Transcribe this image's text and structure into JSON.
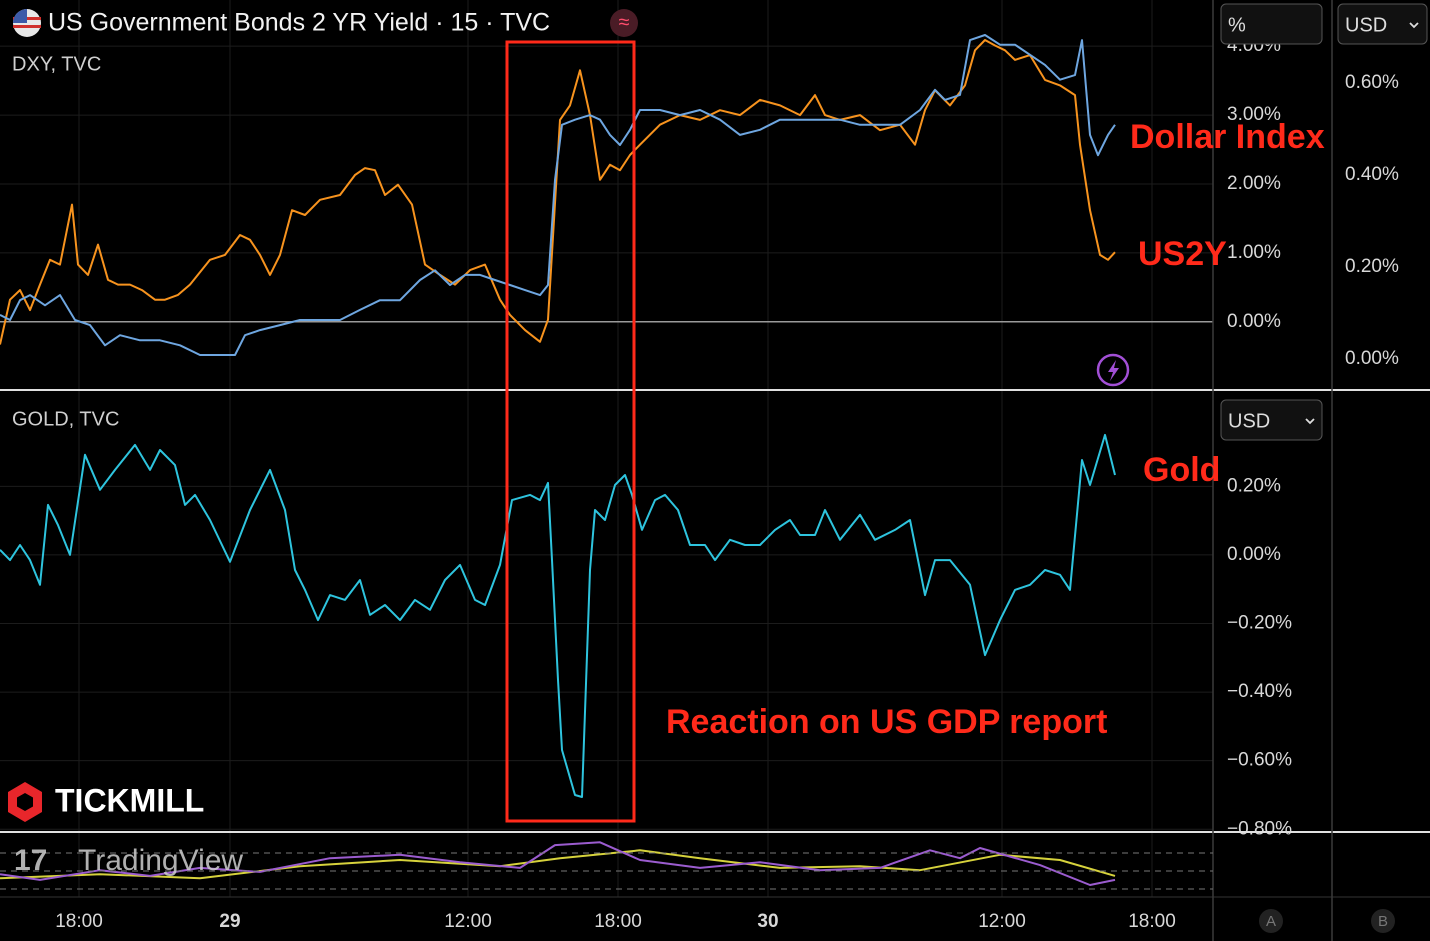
{
  "chart_data": [
    {
      "type": "line",
      "title": "US Government Bonds 2 YR Yield · 15 · TVC",
      "subtitle": "DXY, TVC",
      "xlim": [
        0,
        121.3
      ],
      "xticks": [
        {
          "value": 7.9,
          "label": "18:00"
        },
        {
          "value": 23,
          "label": "29"
        },
        {
          "value": 46.8,
          "label": "12:00"
        },
        {
          "value": 61.8,
          "label": "18:00"
        },
        {
          "value": 76.8,
          "label": "30"
        },
        {
          "value": 100.2,
          "label": "12:00"
        },
        {
          "value": 115.2,
          "label": "18:00"
        }
      ],
      "ylim": [
        -0.99,
        4.67
      ],
      "yticks": [
        {
          "value": 0,
          "label": "0.00%"
        },
        {
          "value": 1,
          "label": "1.00%"
        },
        {
          "value": 2,
          "label": "2.00%"
        },
        {
          "value": 3,
          "label": "3.00%"
        },
        {
          "value": 4,
          "label": "4.00%"
        }
      ],
      "y2lim": [
        -0.067,
        0.78
      ],
      "y2ticks": [
        {
          "value": 0,
          "label": "0.00%"
        },
        {
          "value": 0.2,
          "label": "0.20%"
        },
        {
          "value": 0.4,
          "label": "0.40%"
        },
        {
          "value": 0.6,
          "label": "0.60%"
        }
      ],
      "grid": true,
      "series": [
        {
          "name": "US2Y",
          "color": "#f7931e",
          "x": [
            0,
            1,
            2,
            3,
            4,
            5,
            6,
            7.2,
            7.8,
            8.8,
            9.8,
            10.8,
            11.8,
            13,
            14.2,
            15.5,
            16.5,
            17.8,
            19,
            21,
            22.5,
            24,
            25,
            26,
            27,
            28,
            29.2,
            30.5,
            32,
            34,
            35.5,
            36.5,
            37.5,
            38.5,
            39.8,
            41.2,
            42.5,
            44,
            45.5,
            47,
            48.5,
            50,
            51,
            52.5,
            54,
            54.8,
            56,
            57,
            58,
            59,
            60,
            61,
            62,
            63,
            64,
            66,
            68,
            70,
            72,
            74,
            76,
            78,
            80,
            81.5,
            82.5,
            84,
            86,
            88,
            90,
            91.5,
            92.5,
            93.5,
            95,
            96.5,
            97.5,
            98.5,
            99.5,
            100.5,
            101.5,
            103,
            104.5,
            106,
            107.5,
            108,
            109,
            110,
            110.8,
            111.5
          ],
          "values": [
            -0.33,
            0.32,
            0.46,
            0.17,
            0.54,
            0.9,
            0.83,
            1.7,
            0.83,
            0.68,
            1.12,
            0.61,
            0.54,
            0.54,
            0.46,
            0.32,
            0.32,
            0.39,
            0.54,
            0.9,
            0.97,
            1.26,
            1.19,
            0.97,
            0.68,
            0.97,
            1.62,
            1.55,
            1.77,
            1.84,
            2.13,
            2.23,
            2.2,
            1.84,
            1.99,
            1.7,
            0.83,
            0.68,
            0.54,
            0.75,
            0.83,
            0.32,
            0.1,
            -0.12,
            -0.29,
            0.03,
            2.93,
            3.14,
            3.65,
            3.0,
            2.06,
            2.28,
            2.2,
            2.42,
            2.57,
            2.86,
            3.0,
            2.93,
            3.07,
            3.0,
            3.22,
            3.14,
            3.0,
            3.29,
            3.0,
            2.93,
            3.0,
            2.78,
            2.86,
            2.57,
            3.07,
            3.36,
            3.14,
            3.43,
            3.94,
            4.09,
            4.01,
            3.94,
            3.8,
            3.87,
            3.51,
            3.43,
            3.29,
            2.57,
            1.62,
            0.97,
            0.9,
            1.01
          ]
        },
        {
          "name": "Dollar Index",
          "color": "#6ea6e0",
          "axis": "y2",
          "x": [
            0,
            1,
            2,
            3,
            4.5,
            6,
            7.5,
            9,
            10.5,
            12,
            14,
            16,
            18,
            20,
            22,
            23.5,
            24.5,
            26,
            28,
            30,
            32,
            34,
            36,
            38,
            40,
            42,
            43.5,
            45,
            46.5,
            48,
            49.5,
            51,
            52.5,
            54,
            54.8,
            55.5,
            56.2,
            57.5,
            59,
            60,
            61,
            62,
            63,
            64,
            66,
            68,
            70,
            72,
            74,
            76,
            78,
            80,
            82,
            84,
            86,
            88,
            90,
            92,
            93.5,
            94.5,
            96,
            97,
            98.5,
            100,
            101.5,
            103,
            104.5,
            106,
            107.5,
            108.2,
            109,
            109.8,
            110.8,
            111.5
          ],
          "values": [
            0.096,
            0.085,
            0.128,
            0.139,
            0.117,
            0.139,
            0.085,
            0.074,
            0.03,
            0.052,
            0.041,
            0.041,
            0.03,
            0.009,
            0.009,
            0.009,
            0.052,
            0.063,
            0.074,
            0.085,
            0.085,
            0.085,
            0.107,
            0.128,
            0.128,
            0.172,
            0.193,
            0.161,
            0.183,
            0.183,
            0.172,
            0.161,
            0.15,
            0.139,
            0.161,
            0.389,
            0.509,
            0.52,
            0.53,
            0.52,
            0.487,
            0.465,
            0.498,
            0.541,
            0.541,
            0.53,
            0.541,
            0.52,
            0.487,
            0.498,
            0.52,
            0.52,
            0.52,
            0.52,
            0.509,
            0.509,
            0.509,
            0.541,
            0.585,
            0.563,
            0.574,
            0.693,
            0.704,
            0.683,
            0.683,
            0.661,
            0.639,
            0.607,
            0.617,
            0.693,
            0.487,
            0.443,
            0.487,
            0.509
          ]
        }
      ]
    },
    {
      "type": "line",
      "title": "GOLD, TVC",
      "annotations": [
        "Reaction on US GDP report"
      ],
      "ylim": [
        -0.808,
        0.481
      ],
      "yticks": [
        {
          "value": 0.2,
          "label": "0.20%"
        },
        {
          "value": 0,
          "label": "0.00%"
        },
        {
          "value": -0.2,
          "label": "−0.20%"
        },
        {
          "value": -0.4,
          "label": "−0.40%"
        },
        {
          "value": -0.6,
          "label": "−0.60%"
        },
        {
          "value": -0.8,
          "label": "−0.80%"
        }
      ],
      "grid": true,
      "series": [
        {
          "name": "Gold",
          "color": "#2ec4de",
          "x": [
            0,
            1,
            2,
            3,
            4,
            4.8,
            5.8,
            7,
            8.5,
            10,
            11.5,
            13.5,
            15,
            16,
            17.5,
            18.5,
            19.5,
            21,
            23,
            25,
            27,
            28.5,
            29.5,
            30.5,
            31.8,
            33,
            34.5,
            36,
            37,
            38.5,
            40,
            41.5,
            43,
            44.5,
            46,
            47.5,
            48.5,
            50,
            51.2,
            53,
            54,
            54.8,
            55.2,
            55.8,
            56.2,
            57.5,
            58.2,
            59,
            59.5,
            60.5,
            61.5,
            62.5,
            63.2,
            64.2,
            65.5,
            66.5,
            67.8,
            69,
            70.5,
            71.5,
            73,
            74.5,
            76,
            77.5,
            79,
            80,
            81.5,
            82.5,
            84,
            86,
            87.5,
            89.5,
            91,
            92.5,
            93.5,
            95,
            97,
            98.5,
            100,
            101.5,
            103,
            104.5,
            106,
            107,
            108.2,
            109,
            110.5,
            111.5
          ],
          "values": [
            0.015,
            -0.015,
            0.029,
            -0.015,
            -0.087,
            0.146,
            0.087,
            0,
            0.292,
            0.19,
            0.248,
            0.321,
            0.248,
            0.306,
            0.262,
            0.146,
            0.175,
            0.102,
            -0.02,
            0.131,
            0.248,
            0.131,
            -0.044,
            -0.102,
            -0.19,
            -0.117,
            -0.131,
            -0.073,
            -0.175,
            -0.146,
            -0.19,
            -0.131,
            -0.16,
            -0.073,
            -0.029,
            -0.131,
            -0.146,
            -0.029,
            0.16,
            0.175,
            0.16,
            0.21,
            -0.015,
            -0.364,
            -0.569,
            -0.7,
            -0.706,
            -0.044,
            0.131,
            0.102,
            0.204,
            0.233,
            0.175,
            0.073,
            0.16,
            0.175,
            0.131,
            0.029,
            0.029,
            -0.015,
            0.044,
            0.029,
            0.029,
            0.073,
            0.102,
            0.058,
            0.058,
            0.131,
            0.044,
            0.117,
            0.044,
            0.073,
            0.102,
            -0.117,
            -0.015,
            -0.015,
            -0.087,
            -0.292,
            -0.19,
            -0.102,
            -0.087,
            -0.044,
            -0.058,
            -0.102,
            0.277,
            0.204,
            0.35,
            0.233
          ]
        }
      ]
    },
    {
      "type": "line",
      "ylim": [
        0,
        1
      ],
      "series": [
        {
          "color": "#d6d23c",
          "x": [
            0,
            10,
            20,
            30,
            40,
            50,
            56,
            64,
            70,
            78,
            86,
            92,
            100,
            106,
            111.5
          ],
          "values": [
            0.33,
            0.4,
            0.33,
            0.54,
            0.65,
            0.54,
            0.68,
            0.82,
            0.68,
            0.51,
            0.54,
            0.47,
            0.74,
            0.65,
            0.37
          ]
        },
        {
          "color": "#9b5ccf",
          "x": [
            0,
            4,
            10,
            15,
            20,
            26,
            33,
            40,
            46,
            52,
            55.5,
            60,
            64,
            70,
            76,
            82,
            88,
            93,
            96,
            98,
            104,
            109,
            111.5
          ],
          "values": [
            0.4,
            0.3,
            0.47,
            0.37,
            0.51,
            0.44,
            0.68,
            0.74,
            0.61,
            0.51,
            0.91,
            0.96,
            0.65,
            0.51,
            0.61,
            0.47,
            0.51,
            0.82,
            0.68,
            0.86,
            0.56,
            0.21,
            0.3
          ]
        }
      ]
    }
  ],
  "controls": {
    "unit": "%",
    "currency": [
      "USD",
      "USD"
    ],
    "scales": [
      "A",
      "B"
    ]
  },
  "branding": {
    "broker": "TICKMILL",
    "platform": "TradingView"
  }
}
